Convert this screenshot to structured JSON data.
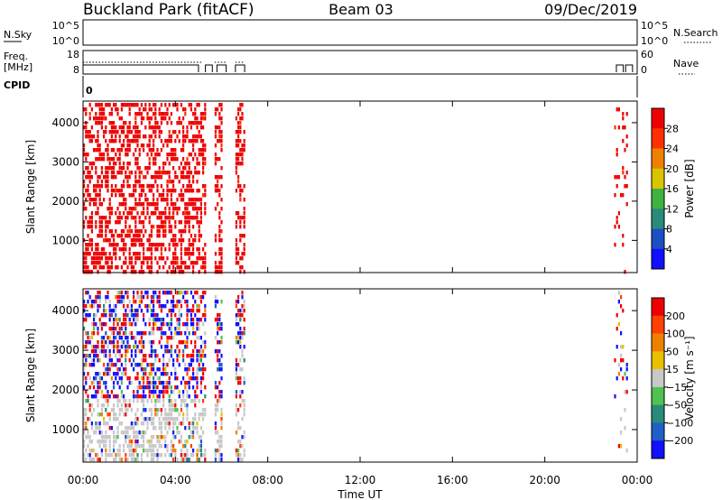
{
  "header": {
    "station": "Buckland Park (fitACF)",
    "beam": "Beam 03",
    "date": "09/Dec/2019"
  },
  "nsky_panel": {
    "left_label": "N.Sky",
    "left_ticks": [
      "10^5",
      "10^0"
    ],
    "right_ticks": [
      "10^5",
      "10^0"
    ],
    "right_label": "N.Search"
  },
  "freq_panel": {
    "left_label_top": "Freq.",
    "left_label_unit": "[MHz]",
    "left_ticks": [
      "18",
      "8"
    ],
    "right_ticks": [
      "60",
      "0"
    ],
    "right_label": "Nave"
  },
  "cpid_panel": {
    "label": "CPID",
    "value": "0"
  },
  "chart_data": [
    {
      "type": "heatmap",
      "name": "Power",
      "ylabel": "Slant Range [km]",
      "ylim": [
        180,
        4550
      ],
      "yticks": [
        1000,
        2000,
        3000,
        4000
      ],
      "xlabel": "Time UT",
      "xlim": [
        0,
        24
      ],
      "xtick_values": [
        0,
        4,
        8,
        12,
        16,
        20,
        24
      ],
      "xtick_labels": [
        "00:00",
        "04:00",
        "08:00",
        "12:00",
        "16:00",
        "20:00",
        "00:00"
      ],
      "colorbar_label": "Power [dB]",
      "colorbar_ticks": [
        "4",
        "8",
        "12",
        "16",
        "20",
        "24",
        "28"
      ],
      "colorbar_range": [
        0,
        32
      ],
      "colors": [
        "#1010ff",
        "#1c4fc4",
        "#2a8a7c",
        "#3fb33f",
        "#d9c400",
        "#f08000",
        "#ff3000",
        "#ee0000"
      ],
      "data_intervals_hours": [
        [
          0,
          5.3
        ],
        [
          5.7,
          6.0
        ],
        [
          6.6,
          7.0
        ],
        [
          23.0,
          23.6
        ]
      ]
    },
    {
      "type": "heatmap",
      "name": "Velocity",
      "ylabel": "Slant Range [km]",
      "ylim": [
        180,
        4550
      ],
      "yticks": [
        1000,
        2000,
        3000,
        4000
      ],
      "xlabel": "Time UT",
      "xlim": [
        0,
        24
      ],
      "xtick_values": [
        0,
        4,
        8,
        12,
        16,
        20,
        24
      ],
      "xtick_labels": [
        "00:00",
        "04:00",
        "08:00",
        "12:00",
        "16:00",
        "20:00",
        "00:00"
      ],
      "colorbar_label": "Velocity [m s⁻¹]",
      "colorbar_ticks": [
        "200",
        "100",
        "50",
        "15",
        "−15",
        "−50",
        "−100",
        "−200"
      ],
      "colors": [
        "#1010ff",
        "#1f5fc8",
        "#2a8a7c",
        "#4fc24f",
        "#c8c8c8",
        "#e8c000",
        "#f08000",
        "#ff4000",
        "#ee0000"
      ],
      "data_intervals_hours": [
        [
          0,
          5.3
        ],
        [
          5.7,
          6.0
        ],
        [
          6.6,
          7.0
        ],
        [
          23.0,
          23.6
        ]
      ]
    }
  ]
}
